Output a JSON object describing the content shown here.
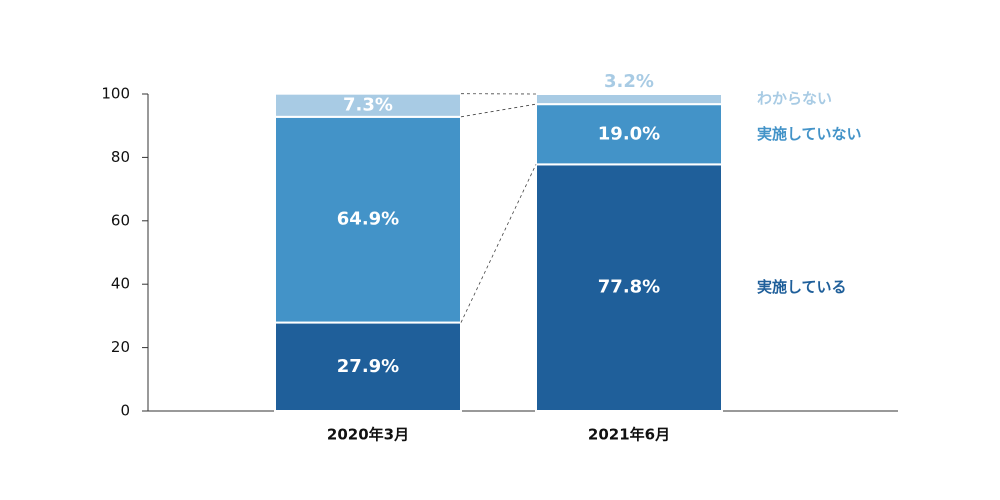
{
  "chart_data": {
    "type": "stacked_bar",
    "categories": [
      "2020年3月",
      "2021年6月"
    ],
    "series": [
      {
        "name": "実施している",
        "color": "#1f5f9a",
        "values": [
          27.9,
          77.8
        ],
        "value_labels": [
          "27.9%",
          "77.8%"
        ]
      },
      {
        "name": "実施していない",
        "color": "#4393c8",
        "values": [
          64.9,
          19.0
        ],
        "value_labels": [
          "64.9%",
          "19.0%"
        ]
      },
      {
        "name": "わからない",
        "color": "#a8cbe4",
        "values": [
          7.3,
          3.2
        ],
        "value_labels": [
          "7.3%",
          "3.2%"
        ]
      }
    ],
    "ylim": [
      0,
      100
    ],
    "yticks": [
      0,
      20,
      40,
      60,
      80,
      100
    ],
    "legend": "right"
  }
}
